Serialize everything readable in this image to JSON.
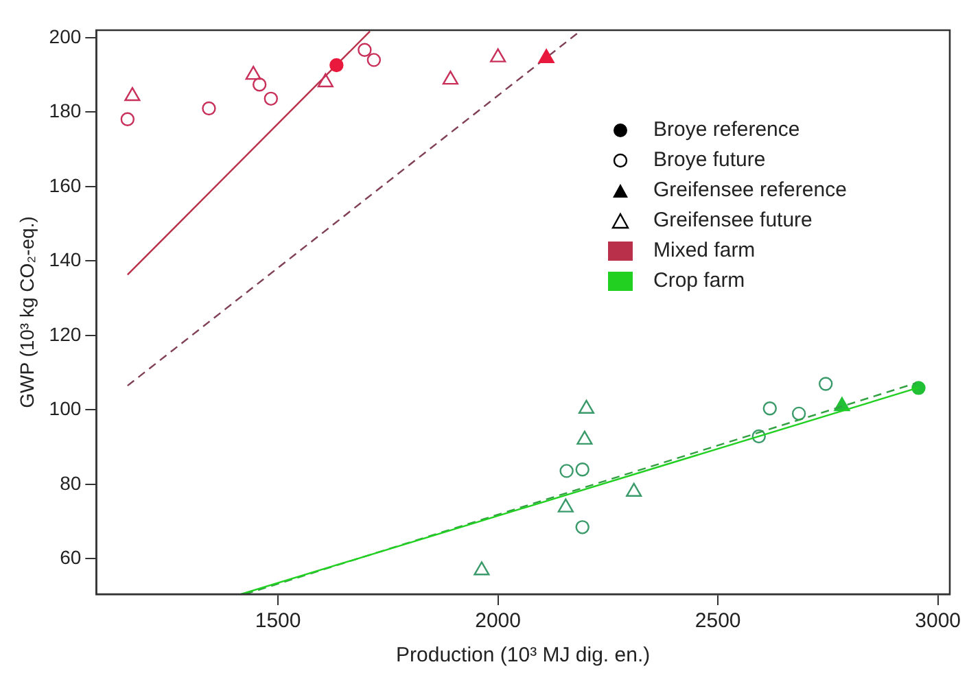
{
  "chart_data": {
    "type": "scatter",
    "xlabel": "Production (10³ MJ dig. en.)",
    "ylabel": "GWP (10³ kg CO₂-eq.)",
    "xlim": [
      1087,
      3027
    ],
    "xticks": [
      1500,
      2000,
      2500,
      3000
    ],
    "ylim": [
      50.5,
      202
    ],
    "yticks": [
      60,
      80,
      100,
      120,
      140,
      160,
      180,
      200
    ],
    "grid": false,
    "legend": "right",
    "annotations": [
      "Broye reference",
      "Broye future",
      "Greifensee reference",
      "Greifensee future"
    ],
    "series": [
      {
        "marker": "circle",
        "color": "#e8193c",
        "colors": [
          "#e8193c"
        ],
        "x": [
          1633
        ],
        "values": [
          192.6
        ]
      },
      {
        "marker": "circle",
        "color": "#c8305a",
        "x": [
          1158,
          1343,
          1458,
          1484,
          1697,
          1718
        ],
        "values": [
          178.1,
          181,
          187.4,
          183.6,
          196.7,
          194
        ]
      },
      {
        "marker": "triangle",
        "color": "#e8193c",
        "colors": [
          "#e8193c"
        ],
        "x": [
          2110
        ],
        "values": [
          194.5
        ]
      },
      {
        "marker": "triangle",
        "color": "#c8305a",
        "x": [
          1169,
          1444,
          1608,
          1892,
          2000
        ],
        "values": [
          184.3,
          190,
          188,
          188.7,
          194.7
        ]
      },
      {
        "name": "Mixed farm",
        "type": "line",
        "line_style": "solid",
        "color": "#b8304a",
        "x": [
          1158,
          1709
        ],
        "values": [
          136.3,
          201.7
        ]
      },
      {
        "name": "Crop farm",
        "type": "line",
        "line_style": "solid",
        "color": "#22d022",
        "x": [
          1416,
          2956
        ],
        "values": [
          50.5,
          106
        ]
      },
      {
        "type": "line",
        "line_style": "dashed",
        "color": "#804058",
        "x": [
          1158,
          2182
        ],
        "values": [
          106.5,
          201.3
        ]
      },
      {
        "type": "line",
        "line_style": "dashed",
        "color": "#30a040",
        "x": [
          1425,
          2950
        ],
        "values": [
          50.5,
          107.2
        ]
      },
      {
        "marker": "circle",
        "color": "#22c035",
        "colors": [
          "#22c035"
        ],
        "x": [
          2956
        ],
        "values": [
          105.9
        ]
      },
      {
        "marker": "circle",
        "color": "#3a9a6a",
        "x": [
          2745,
          2618,
          2684,
          2593,
          2156,
          2192,
          2192
        ],
        "values": [
          107,
          100.4,
          99,
          92.9,
          83.6,
          84,
          68.5
        ]
      },
      {
        "marker": "triangle",
        "color": "#22c035",
        "colors": [
          "#22c035"
        ],
        "x": [
          2782
        ],
        "values": [
          101
        ]
      },
      {
        "marker": "triangle",
        "color": "#3a9a6a",
        "x": [
          2201,
          2197,
          2154,
          2309,
          1963
        ],
        "values": [
          100.3,
          92,
          73.8,
          78,
          56.9
        ]
      }
    ]
  }
}
